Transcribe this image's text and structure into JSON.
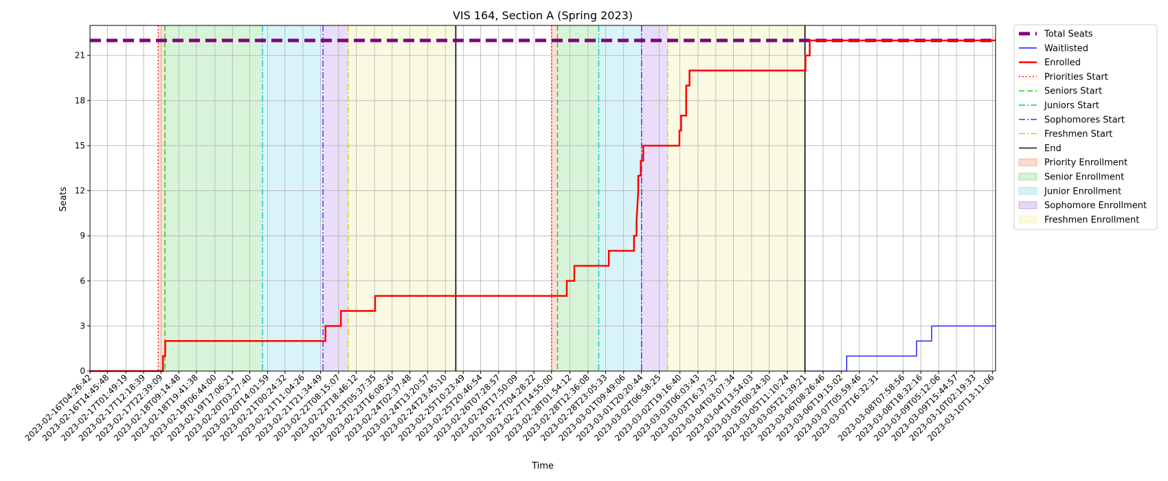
{
  "chart_data": {
    "type": "line",
    "title": "VIS 164, Section A (Spring 2023)",
    "xlabel": "Time",
    "ylabel": "Seats",
    "ylim": [
      0,
      23
    ],
    "yticks": [
      0,
      3,
      6,
      9,
      12,
      15,
      18,
      21
    ],
    "xlim": [
      "2023-02-16T04:26:42",
      "2023-03-10T15:00:00"
    ],
    "x_tick_labels": [
      "2023-02-16T04:26:42",
      "2023-02-16T14:45:48",
      "2023-02-17T01:49:19",
      "2023-02-17T12:18:39",
      "2023-02-17T22:39:09",
      "2023-02-18T09:14:48",
      "2023-02-18T19:41:38",
      "2023-02-19T06:44:00",
      "2023-02-19T17:06:21",
      "2023-02-20T03:27:40",
      "2023-02-20T14:01:59",
      "2023-02-21T00:24:32",
      "2023-02-21T11:04:26",
      "2023-02-21T21:34:49",
      "2023-02-22T08:15:07",
      "2023-02-22T18:46:12",
      "2023-02-23T05:37:35",
      "2023-02-23T16:08:26",
      "2023-02-24T02:37:48",
      "2023-02-24T13:20:57",
      "2023-02-24T23:45:10",
      "2023-02-25T10:23:49",
      "2023-02-25T20:46:54",
      "2023-02-26T07:28:57",
      "2023-02-26T17:50:09",
      "2023-02-27T04:28:22",
      "2023-02-27T14:55:00",
      "2023-02-28T01:54:12",
      "2023-02-28T12:36:08",
      "2023-02-28T23:05:33",
      "2023-03-01T09:49:06",
      "2023-03-01T20:20:44",
      "2023-03-02T06:58:25",
      "2023-03-02T19:16:40",
      "2023-03-03T06:03:43",
      "2023-03-03T16:37:32",
      "2023-03-04T03:07:34",
      "2023-03-04T13:54:03",
      "2023-03-05T00:24:30",
      "2023-03-05T11:10:24",
      "2023-03-05T21:39:21",
      "2023-03-06T08:26:46",
      "2023-03-06T19:15:02",
      "2023-03-07T05:59:46",
      "2023-03-07T16:32:31",
      "2023-03-08T07:58:56",
      "2023-03-08T18:32:16",
      "2023-03-09T05:12:06",
      "2023-03-09T15:44:57",
      "2023-03-10T02:19:33",
      "2023-03-10T13:11:06"
    ],
    "grid": true,
    "legend_position": "outside-right",
    "series": [
      {
        "name": "Total Seats",
        "color": "#800080",
        "style": "dashed-thick",
        "points": [
          [
            "2023-02-16T04:26:42",
            22
          ],
          [
            "2023-03-10T15:00:00",
            22
          ]
        ]
      },
      {
        "name": "Waitlisted",
        "color": "#0000ff",
        "style": "step",
        "points": [
          [
            "2023-03-05T21:39:21",
            0
          ],
          [
            "2023-03-06T22:30:00",
            0
          ],
          [
            "2023-03-06T22:30:00",
            1
          ],
          [
            "2023-03-08T16:00:00",
            1
          ],
          [
            "2023-03-08T16:00:00",
            2
          ],
          [
            "2023-03-09T01:00:00",
            2
          ],
          [
            "2023-03-09T01:00:00",
            3
          ],
          [
            "2023-03-10T15:00:00",
            3
          ]
        ]
      },
      {
        "name": "Enrolled",
        "color": "#ff0000",
        "style": "step-thick",
        "points": [
          [
            "2023-02-16T04:26:42",
            0
          ],
          [
            "2023-02-17T23:50:00",
            0
          ],
          [
            "2023-02-17T23:50:00",
            1
          ],
          [
            "2023-02-18T01:10:00",
            1
          ],
          [
            "2023-02-18T01:10:00",
            2
          ],
          [
            "2023-02-22T00:30:00",
            2
          ],
          [
            "2023-02-22T00:30:00",
            3
          ],
          [
            "2023-02-22T09:40:00",
            3
          ],
          [
            "2023-02-22T09:40:00",
            4
          ],
          [
            "2023-02-23T06:00:00",
            4
          ],
          [
            "2023-02-23T06:00:00",
            5
          ],
          [
            "2023-02-28T00:00:00",
            5
          ],
          [
            "2023-02-28T00:00:00",
            6
          ],
          [
            "2023-02-28T04:30:00",
            6
          ],
          [
            "2023-02-28T04:30:00",
            7
          ],
          [
            "2023-03-01T01:00:00",
            7
          ],
          [
            "2023-03-01T01:00:00",
            8
          ],
          [
            "2023-03-01T16:00:00",
            8
          ],
          [
            "2023-03-01T16:00:00",
            9
          ],
          [
            "2023-03-01T17:30:00",
            9
          ],
          [
            "2023-03-01T17:30:00",
            10
          ],
          [
            "2023-03-01T18:00:00",
            11
          ],
          [
            "2023-03-01T18:30:00",
            12
          ],
          [
            "2023-03-01T18:30:00",
            13
          ],
          [
            "2023-03-01T20:00:00",
            13
          ],
          [
            "2023-03-01T20:00:00",
            14
          ],
          [
            "2023-03-01T21:30:00",
            14
          ],
          [
            "2023-03-01T21:30:00",
            15
          ],
          [
            "2023-03-02T19:00:00",
            15
          ],
          [
            "2023-03-02T19:00:00",
            16
          ],
          [
            "2023-03-02T20:00:00",
            16
          ],
          [
            "2023-03-02T20:00:00",
            17
          ],
          [
            "2023-03-02T23:00:00",
            17
          ],
          [
            "2023-03-02T23:00:00",
            19
          ],
          [
            "2023-03-03T01:00:00",
            19
          ],
          [
            "2023-03-03T01:00:00",
            20
          ],
          [
            "2023-03-05T22:00:00",
            20
          ],
          [
            "2023-03-05T22:00:00",
            21
          ],
          [
            "2023-03-06T00:30:00",
            21
          ],
          [
            "2023-03-06T00:30:00",
            22
          ],
          [
            "2023-03-10T15:00:00",
            22
          ]
        ]
      }
    ],
    "phase_lines": [
      {
        "name": "Priorities Start",
        "color": "#ff0000",
        "style": "dotted",
        "times": [
          "2023-02-17T21:00:00",
          "2023-02-27T15:00:00"
        ]
      },
      {
        "name": "Seniors Start",
        "color": "#00cc00",
        "style": "dashed",
        "times": [
          "2023-02-18T01:00:00",
          "2023-02-27T18:30:00"
        ]
      },
      {
        "name": "Juniors Start",
        "color": "#00bfbf",
        "style": "dashdot",
        "times": [
          "2023-02-20T11:00:00",
          "2023-02-28T19:00:00"
        ]
      },
      {
        "name": "Sophomores Start",
        "color": "#6a00ff",
        "style": "dashdot",
        "times": [
          "2023-02-21T23:00:00",
          "2023-03-01T20:30:00"
        ]
      },
      {
        "name": "Freshmen Start",
        "color": "#cccc00",
        "style": "dashdot",
        "times": [
          "2023-02-22T14:00:00",
          "2023-03-02T12:00:00"
        ]
      },
      {
        "name": "End",
        "color": "#000000",
        "style": "solid",
        "times": [
          "2023-02-25T06:00:00",
          "2023-03-05T21:39:21"
        ]
      }
    ],
    "phase_regions": [
      {
        "name": "Priority Enrollment",
        "color": "#f4a582",
        "intervals": [
          [
            "2023-02-17T21:00:00",
            "2023-02-18T01:00:00"
          ],
          [
            "2023-02-27T15:00:00",
            "2023-02-27T18:30:00"
          ]
        ]
      },
      {
        "name": "Senior Enrollment",
        "color": "#90e090",
        "intervals": [
          [
            "2023-02-18T01:00:00",
            "2023-02-20T11:00:00"
          ],
          [
            "2023-02-27T18:30:00",
            "2023-02-28T19:00:00"
          ]
        ]
      },
      {
        "name": "Junior Enrollment",
        "color": "#90e0ea",
        "intervals": [
          [
            "2023-02-20T11:00:00",
            "2023-02-21T23:00:00"
          ],
          [
            "2023-02-28T19:00:00",
            "2023-03-01T20:30:00"
          ]
        ]
      },
      {
        "name": "Sophomore Enrollment",
        "color": "#bfa0ee",
        "intervals": [
          [
            "2023-02-21T23:00:00",
            "2023-02-22T14:00:00"
          ],
          [
            "2023-03-01T20:30:00",
            "2023-03-02T12:00:00"
          ]
        ]
      },
      {
        "name": "Freshmen Enrollment",
        "color": "#f0f0b0",
        "intervals": [
          [
            "2023-02-22T14:00:00",
            "2023-02-25T06:00:00"
          ],
          [
            "2023-03-02T12:00:00",
            "2023-03-05T21:39:21"
          ]
        ]
      }
    ],
    "legend": [
      {
        "label": "Total Seats",
        "kind": "line",
        "color": "#800080",
        "style": "dashed-thick"
      },
      {
        "label": "Waitlisted",
        "kind": "line",
        "color": "#0000ff",
        "style": "solid"
      },
      {
        "label": "Enrolled",
        "kind": "line",
        "color": "#ff0000",
        "style": "solid-thick"
      },
      {
        "label": "Priorities Start",
        "kind": "line",
        "color": "#ff0000",
        "style": "dotted"
      },
      {
        "label": "Seniors Start",
        "kind": "line",
        "color": "#00cc00",
        "style": "dashed"
      },
      {
        "label": "Juniors Start",
        "kind": "line",
        "color": "#00bfbf",
        "style": "dashdot"
      },
      {
        "label": "Sophomores Start",
        "kind": "line",
        "color": "#6a00ff",
        "style": "dashdot"
      },
      {
        "label": "Freshmen Start",
        "kind": "line",
        "color": "#cccc00",
        "style": "dashdot"
      },
      {
        "label": "End",
        "kind": "line",
        "color": "#000000",
        "style": "solid"
      },
      {
        "label": "Priority Enrollment",
        "kind": "patch",
        "color": "#f4a582"
      },
      {
        "label": "Senior Enrollment",
        "kind": "patch",
        "color": "#90e090"
      },
      {
        "label": "Junior Enrollment",
        "kind": "patch",
        "color": "#90e0ea"
      },
      {
        "label": "Sophomore Enrollment",
        "kind": "patch",
        "color": "#bfa0ee"
      },
      {
        "label": "Freshmen Enrollment",
        "kind": "patch",
        "color": "#f0f0b0"
      }
    ]
  }
}
